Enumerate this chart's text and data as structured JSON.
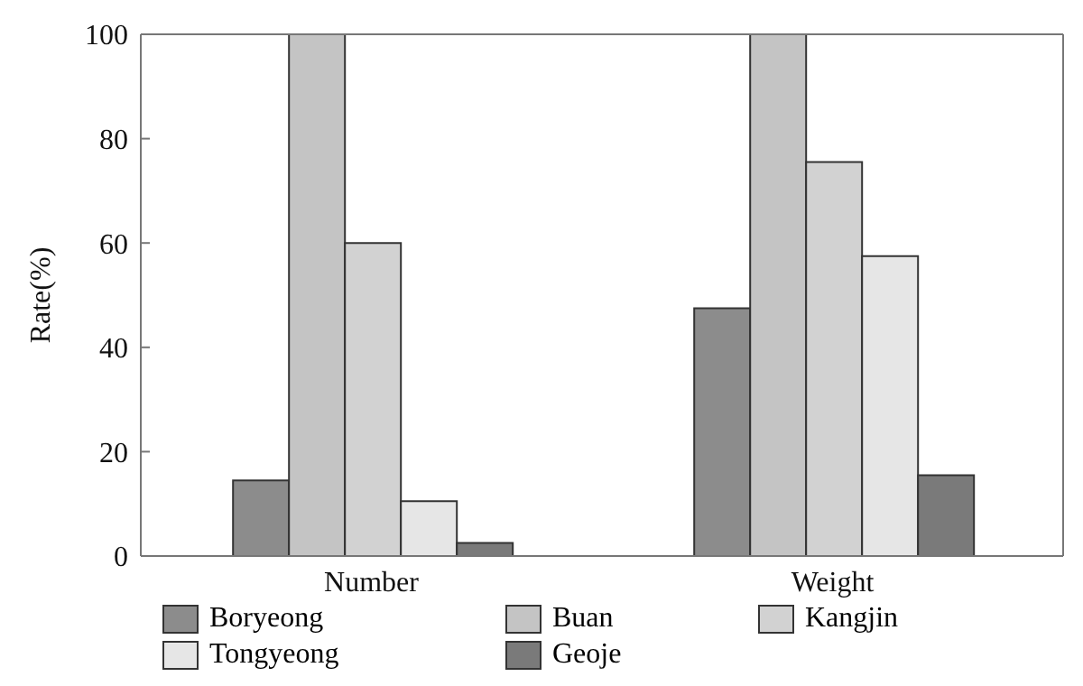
{
  "chart_data": {
    "type": "bar",
    "ylabel": "Rate(%)",
    "categories": [
      "Number",
      "Weight"
    ],
    "series": [
      {
        "name": "Boryeong",
        "color": "#8c8c8c",
        "values": [
          14.5,
          47.5
        ]
      },
      {
        "name": "Buan",
        "color": "#c4c4c4",
        "values": [
          100,
          100
        ]
      },
      {
        "name": "Kangjin",
        "color": "#d2d2d2",
        "values": [
          60,
          75.5
        ]
      },
      {
        "name": "Tongyeong",
        "color": "#e6e6e6",
        "values": [
          10.5,
          57.5
        ]
      },
      {
        "name": "Geoje",
        "color": "#7a7a7a",
        "values": [
          2.5,
          15.5
        ]
      }
    ],
    "ylim": [
      0,
      100
    ],
    "yticks": [
      0,
      20,
      40,
      60,
      80,
      100
    ],
    "grid": false,
    "legend": "bottom"
  }
}
